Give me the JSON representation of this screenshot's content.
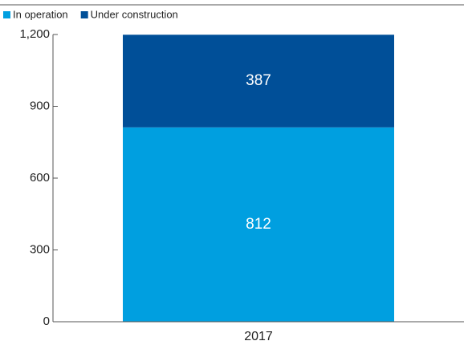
{
  "chart_data": {
    "type": "stacked-bar",
    "categories": [
      "2017"
    ],
    "series": [
      {
        "name": "In operation",
        "color": "#009fe0",
        "values": [
          812
        ]
      },
      {
        "name": "Under construction",
        "color": "#004f98",
        "values": [
          387
        ]
      }
    ],
    "ylim": [
      0,
      1200
    ],
    "yticks": [
      0,
      300,
      600,
      900,
      {
        "value": 1200,
        "label": "1,200"
      }
    ],
    "value_label_color": "#ffffff"
  }
}
